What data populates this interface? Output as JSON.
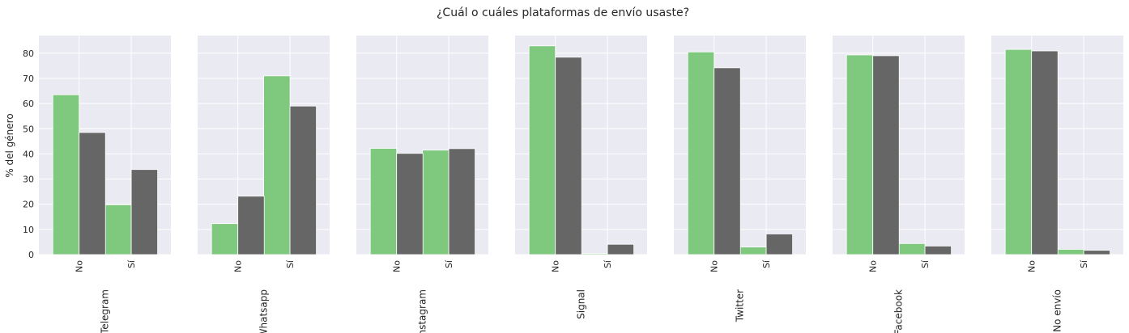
{
  "chart_data": {
    "type": "bar",
    "title": "¿Cuál o cuáles plataformas de envío usaste?",
    "ylabel": "% del género",
    "ylim": [
      0,
      87
    ],
    "yticks": [
      0,
      10,
      20,
      30,
      40,
      50,
      60,
      70,
      80
    ],
    "grid": true,
    "categories": [
      "No",
      "Sí"
    ],
    "colors": [
      "#7fc97f",
      "#666666"
    ],
    "panels": [
      {
        "xlabel": "Telegram",
        "series": [
          {
            "values": [
              63.5,
              19.8
            ]
          },
          {
            "values": [
              48.5,
              33.8
            ]
          }
        ]
      },
      {
        "xlabel": "Whatsapp",
        "series": [
          {
            "values": [
              12.3,
              71.0
            ]
          },
          {
            "values": [
              23.2,
              59.0
            ]
          }
        ]
      },
      {
        "xlabel": "Instagram",
        "series": [
          {
            "values": [
              42.2,
              41.5
            ]
          },
          {
            "values": [
              40.2,
              42.1
            ]
          }
        ]
      },
      {
        "xlabel": "Signal",
        "series": [
          {
            "values": [
              82.9,
              0.4
            ]
          },
          {
            "values": [
              78.4,
              4.1
            ]
          }
        ]
      },
      {
        "xlabel": "Twitter",
        "series": [
          {
            "values": [
              80.5,
              3.0
            ]
          },
          {
            "values": [
              74.2,
              8.2
            ]
          }
        ]
      },
      {
        "xlabel": "Facebook",
        "series": [
          {
            "values": [
              79.3,
              4.4
            ]
          },
          {
            "values": [
              79.0,
              3.4
            ]
          }
        ]
      },
      {
        "xlabel": "No envío",
        "series": [
          {
            "values": [
              81.5,
              2.1
            ]
          },
          {
            "values": [
              80.9,
              1.7
            ]
          }
        ]
      }
    ]
  }
}
